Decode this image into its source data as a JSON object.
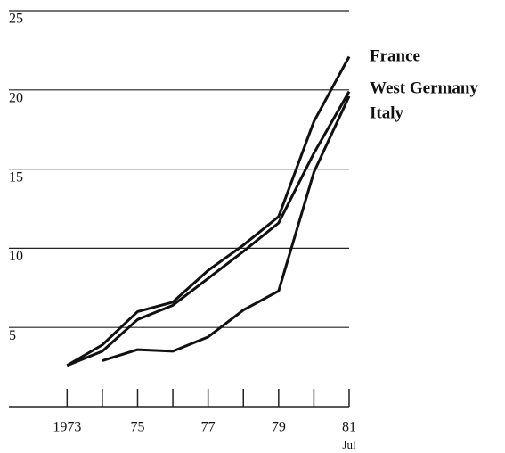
{
  "chart_data": {
    "type": "line",
    "x": [
      1973,
      1974,
      1975,
      1976,
      1977,
      1978,
      1979,
      1980,
      1981
    ],
    "series": [
      {
        "name": "France",
        "color": "#111111",
        "values": [
          2.6,
          3.9,
          6.0,
          6.6,
          8.6,
          10.2,
          12.0,
          18.0,
          22.1
        ]
      },
      {
        "name": "West Germany",
        "color": "#111111",
        "values": [
          2.6,
          3.5,
          5.5,
          6.4,
          8.1,
          9.8,
          11.6,
          16.0,
          19.9
        ]
      },
      {
        "name": "Italy",
        "color": "#111111",
        "values": [
          null,
          2.9,
          3.6,
          3.5,
          4.4,
          6.1,
          7.3,
          14.8,
          19.6
        ]
      }
    ],
    "xlim": [
      1971.35,
      1981
    ],
    "xticks": [
      {
        "value": 1973,
        "label": "1973"
      },
      {
        "value": 1975,
        "label": "75"
      },
      {
        "value": 1977,
        "label": "77"
      },
      {
        "value": 1979,
        "label": "79"
      },
      {
        "value": 1981,
        "label": "81"
      }
    ],
    "minor_xticks": [
      1974,
      1976,
      1978,
      1980
    ],
    "x_note": "Jul",
    "ylim": [
      0,
      25
    ],
    "yticks": [
      5,
      10,
      15,
      20,
      25
    ],
    "grid": true
  }
}
